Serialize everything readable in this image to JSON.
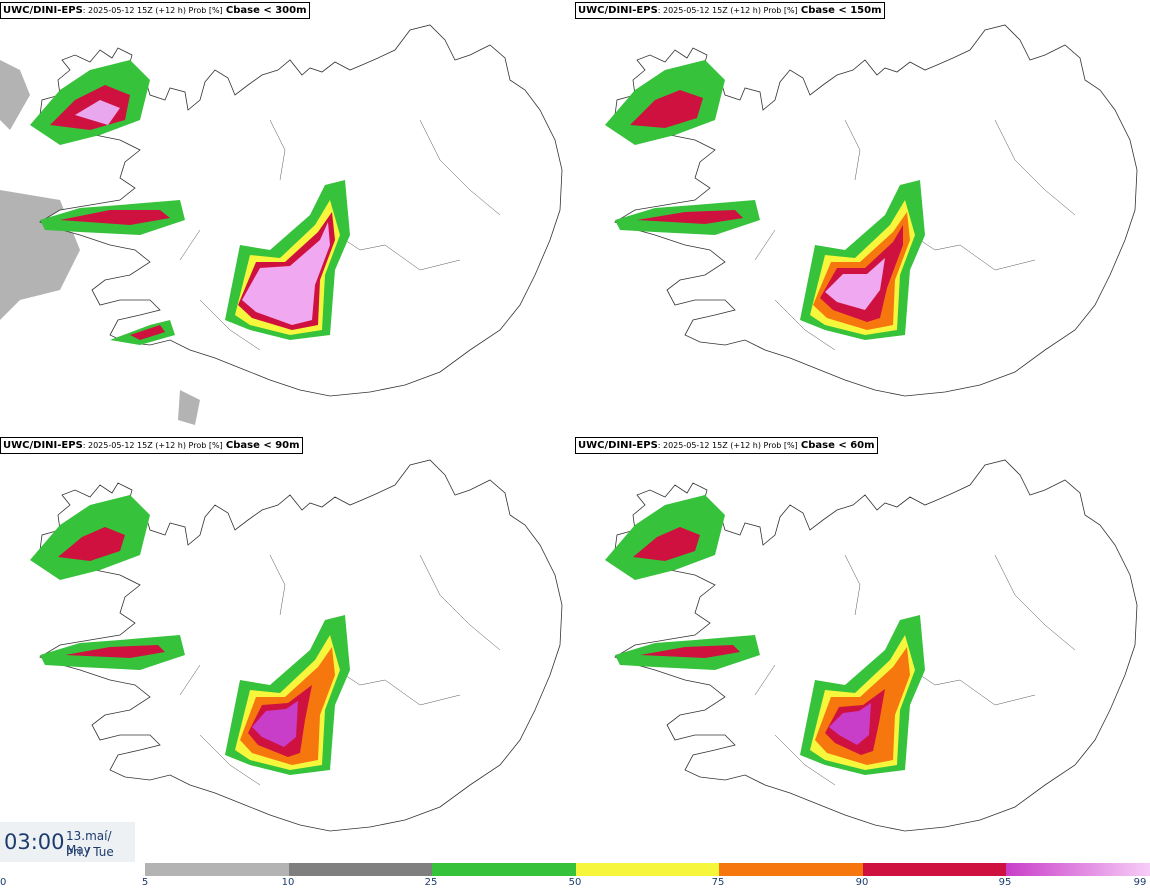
{
  "panels": [
    {
      "model": "UWC/DINI-EPS",
      "meta": ": 2025-05-12 15Z (+12 h) Prob [%]",
      "variable": "Cbase < 300m"
    },
    {
      "model": "UWC/DINI-EPS",
      "meta": ": 2025-05-12 15Z (+12 h) Prob [%]",
      "variable": "Cbase < 150m"
    },
    {
      "model": "UWC/DINI-EPS",
      "meta": ": 2025-05-12 15Z (+12 h) Prob [%]",
      "variable": "Cbase < 90m"
    },
    {
      "model": "UWC/DINI-EPS",
      "meta": ": 2025-05-12 15Z (+12 h) Prob [%]",
      "variable": "Cbase < 60m"
    }
  ],
  "valid_time": {
    "time": "03:00",
    "date_line1": "13.maí/ May",
    "date_line2": "Þri./ Tue"
  },
  "colorbar": {
    "ticks": [
      "0",
      "5",
      "10",
      "25",
      "50",
      "75",
      "90",
      "95",
      "99"
    ],
    "colors": [
      "#ffffff",
      "#b3b3b3",
      "#7f7f7f",
      "#36c23a",
      "#f6f63c",
      "#f7770f",
      "#cf1140",
      "#c93ec9"
    ]
  }
}
